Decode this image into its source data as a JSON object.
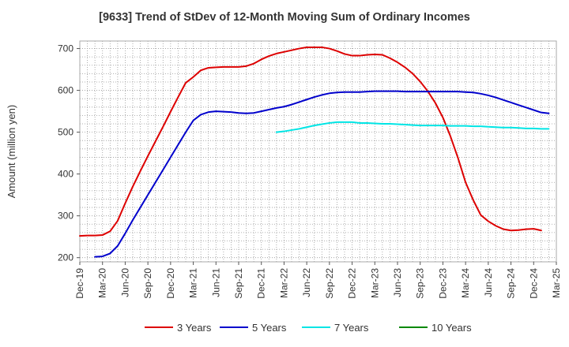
{
  "chart_data": {
    "type": "line",
    "title": "[9633]  Trend of StDev of 12-Month Moving Sum of Ordinary Incomes",
    "xlabel": "",
    "ylabel": "Amount (million yen)",
    "ylim": [
      190,
      718
    ],
    "yticks": [
      200,
      300,
      400,
      500,
      600,
      700
    ],
    "xlim": [
      "2019-12",
      "2025-03"
    ],
    "xtick_labels": [
      "Dec-19",
      "Mar-20",
      "Jun-20",
      "Sep-20",
      "Dec-20",
      "Mar-21",
      "Jun-21",
      "Sep-21",
      "Dec-21",
      "Mar-22",
      "Jun-22",
      "Sep-22",
      "Dec-22",
      "Mar-23",
      "Jun-23",
      "Sep-23",
      "Dec-23",
      "Mar-24",
      "Jun-24",
      "Sep-24",
      "Dec-24",
      "Mar-25"
    ],
    "grid": true,
    "legend_position": "bottom",
    "series": [
      {
        "name": "3 Years",
        "color": "#dd0000",
        "start": "2019-12",
        "values": [
          252,
          253,
          253,
          254,
          263,
          288,
          330,
          370,
          407,
          443,
          478,
          513,
          549,
          584,
          618,
          632,
          648,
          654,
          655,
          656,
          656,
          656,
          658,
          664,
          674,
          682,
          688,
          692,
          696,
          700,
          703,
          703,
          703,
          700,
          694,
          687,
          683,
          683,
          685,
          686,
          685,
          677,
          667,
          655,
          640,
          621,
          598,
          570,
          535,
          490,
          438,
          380,
          338,
          302,
          287,
          276,
          268,
          265,
          266,
          268,
          269,
          265
        ]
      },
      {
        "name": "5 Years",
        "color": "#0000cc",
        "start": "2020-02",
        "values": [
          202,
          203,
          210,
          228,
          258,
          290,
          320,
          350,
          380,
          410,
          440,
          470,
          500,
          528,
          542,
          548,
          550,
          549,
          548,
          546,
          545,
          546,
          550,
          554,
          558,
          561,
          566,
          572,
          578,
          584,
          589,
          593,
          595,
          596,
          596,
          596,
          597,
          598,
          598,
          598,
          598,
          597,
          597,
          597,
          597,
          597,
          597,
          597,
          597,
          596,
          595,
          592,
          588,
          583,
          577,
          571,
          565,
          559,
          553,
          547,
          545
        ]
      },
      {
        "name": "7 Years",
        "color": "#00e5e5",
        "start": "2022-02",
        "values": [
          500,
          502,
          505,
          508,
          512,
          516,
          519,
          522,
          524,
          524,
          524,
          522,
          522,
          521,
          520,
          520,
          519,
          518,
          517,
          516,
          516,
          516,
          516,
          515,
          515,
          515,
          514,
          514,
          513,
          512,
          511,
          511,
          510,
          509,
          509,
          508,
          508
        ]
      },
      {
        "name": "10 Years",
        "color": "#008800",
        "start": "2025-03",
        "values": []
      }
    ]
  }
}
